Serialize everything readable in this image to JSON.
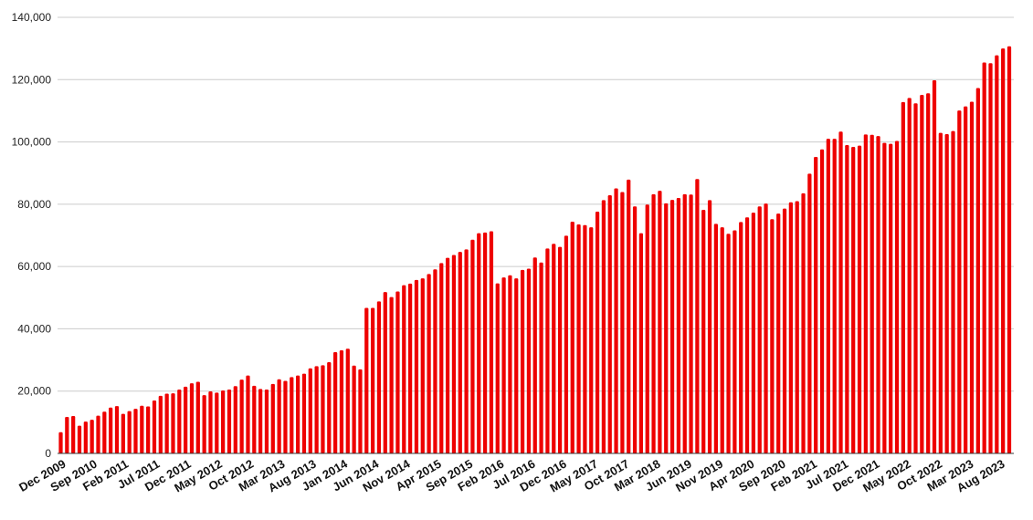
{
  "chart_data": {
    "type": "bar",
    "title": "",
    "xlabel": "",
    "ylabel": "",
    "ylim": [
      0,
      140000
    ],
    "yticks": [
      0,
      20000,
      40000,
      60000,
      80000,
      100000,
      120000,
      140000
    ],
    "ytick_labels": [
      "0",
      "20,000",
      "40,000",
      "60,000",
      "80,000",
      "100,000",
      "120,000",
      "140,000"
    ],
    "xtick_labels": [
      "Dec 2009",
      "Sep 2010",
      "Feb 2011",
      "Jul 2011",
      "Dec 2011",
      "May 2012",
      "Oct 2012",
      "Mar 2013",
      "Aug 2013",
      "Jan 2014",
      "Jun 2014",
      "Nov 2014",
      "Apr 2015",
      "Sep 2015",
      "Feb 2016",
      "Jul 2016",
      "Dec 2016",
      "May 2017",
      "Oct 2017",
      "Mar 2018",
      "Jun 2019",
      "Nov 2019",
      "Apr 2020",
      "Sep 2020",
      "Feb 2021",
      "Jul 2021",
      "Dec 2021",
      "May 2022",
      "Oct 2022",
      "Mar 2023",
      "Aug 2023"
    ],
    "bar_color": "#ee0000",
    "grid": true,
    "values": [
      6800,
      11700,
      12000,
      8900,
      10200,
      10800,
      12100,
      13400,
      14700,
      15200,
      12700,
      13600,
      14300,
      15300,
      15100,
      17000,
      18500,
      19200,
      19300,
      20500,
      21400,
      22500,
      23000,
      18700,
      19900,
      19500,
      20200,
      20500,
      21600,
      23700,
      25000,
      21700,
      20700,
      20500,
      22300,
      23800,
      23300,
      24500,
      25000,
      25600,
      27300,
      28000,
      28300,
      29300,
      32500,
      33100,
      33600,
      28200,
      27000,
      46700,
      46700,
      48800,
      51800,
      50200,
      52000,
      54000,
      54500,
      55700,
      56200,
      57600,
      59100,
      61100,
      62800,
      63700,
      64700,
      65500,
      68600,
      70700,
      70900,
      71300,
      54600,
      56500,
      57200,
      56200,
      58900,
      59300,
      62900,
      61300,
      65800,
      67300,
      66300,
      69900,
      74400,
      73500,
      73300,
      72600,
      77600,
      81300,
      82900,
      85100,
      83900,
      87900,
      79300,
      70700,
      79900,
      83200,
      84300,
      80300,
      81400,
      82000,
      83200,
      83100,
      88100,
      78200,
      81300,
      73700,
      72600,
      70500,
      71600,
      74300,
      75800,
      77300,
      79300,
      80200,
      75200,
      77000,
      78600,
      80600,
      81000,
      83500,
      89800,
      95200,
      97600,
      101000,
      101000,
      103300,
      99000,
      98400,
      98800,
      102400,
      102300,
      101900,
      99700,
      99400,
      100300,
      112800,
      114100,
      112400,
      115100,
      115600,
      119800,
      102900,
      102500,
      103500,
      110100,
      111400,
      112900,
      117300,
      125500,
      125300,
      127800,
      130000,
      130700
    ]
  }
}
